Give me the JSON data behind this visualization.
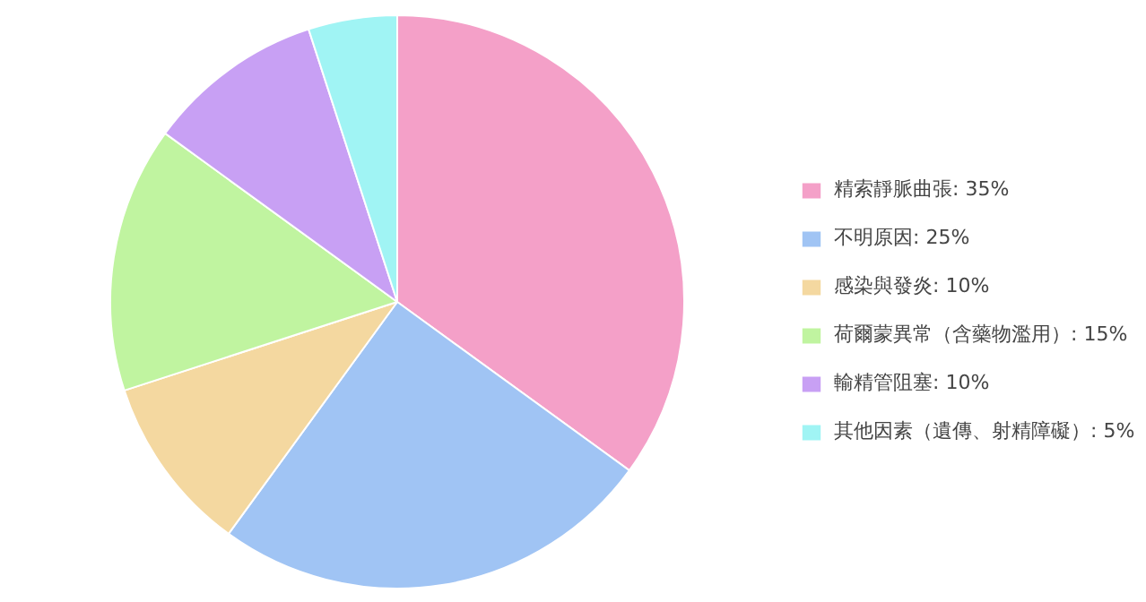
{
  "chart_data": {
    "type": "pie",
    "categories": [
      "精索靜脈曲張",
      "不明原因",
      "感染與發炎",
      "荷爾蒙異常（含藥物濫用）",
      "輸精管阻塞",
      "其他因素（遺傳、射精障礙）"
    ],
    "values": [
      35,
      25,
      10,
      15,
      10,
      5
    ],
    "value_labels": [
      "35%",
      "25%",
      "10%",
      "15%",
      "10%",
      "5%"
    ],
    "colors": [
      "#f4a0c8",
      "#a0c4f4",
      "#f4d8a0",
      "#c0f4a0",
      "#c8a0f4",
      "#a0f4f4"
    ],
    "legend": "right"
  }
}
